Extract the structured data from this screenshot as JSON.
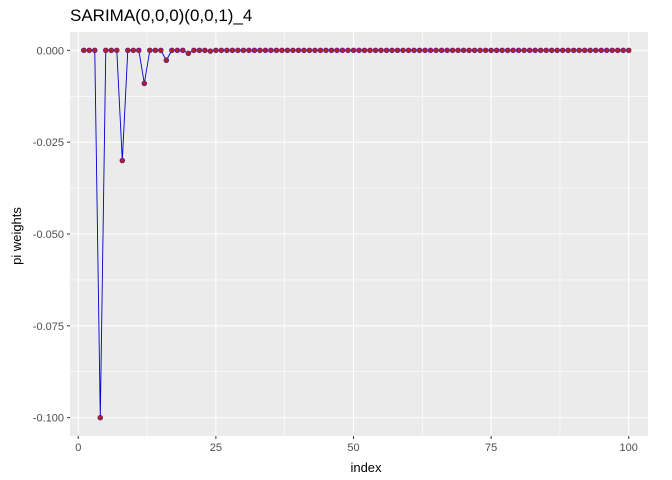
{
  "chart_data": {
    "type": "line",
    "title": "SARIMA(0,0,0)(0,0,1)_4",
    "xlabel": "index",
    "ylabel": "pi weights",
    "xlim": [
      -1.5,
      103.5
    ],
    "ylim": [
      -0.105,
      0.005
    ],
    "x_ticks": [
      0,
      25,
      50,
      75,
      100
    ],
    "x_tick_labels": [
      "0",
      "25",
      "50",
      "75",
      "100"
    ],
    "y_ticks": [
      0.0,
      -0.025,
      -0.05,
      -0.075,
      -0.1
    ],
    "y_tick_labels": [
      "0.000",
      "-0.025",
      "-0.050",
      "-0.075",
      "-0.100"
    ],
    "grid": true,
    "legend": "none",
    "colors": {
      "panel_background": "#ebebeb",
      "grid_line": "#ffffff",
      "line": "#0000cd",
      "point_fill": "#b22222",
      "point_stroke": "#551a8b"
    },
    "series": [
      {
        "x": [
          1,
          2,
          3,
          4,
          5,
          6,
          7,
          8,
          9,
          10,
          11,
          12,
          13,
          14,
          15,
          16,
          17,
          18,
          19,
          20,
          21,
          22,
          23,
          24,
          25,
          26,
          27,
          28,
          29,
          30,
          31,
          32,
          33,
          34,
          35,
          36,
          37,
          38,
          39,
          40,
          41,
          42,
          43,
          44,
          45,
          46,
          47,
          48,
          49,
          50,
          51,
          52,
          53,
          54,
          55,
          56,
          57,
          58,
          59,
          60,
          61,
          62,
          63,
          64,
          65,
          66,
          67,
          68,
          69,
          70,
          71,
          72,
          73,
          74,
          75,
          76,
          77,
          78,
          79,
          80,
          81,
          82,
          83,
          84,
          85,
          86,
          87,
          88,
          89,
          90,
          91,
          92,
          93,
          94,
          95,
          96,
          97,
          98,
          99,
          100
        ],
        "values": [
          0,
          0,
          0,
          -0.1,
          0,
          0,
          0,
          -0.03,
          0,
          0,
          0,
          -0.009,
          0,
          0,
          0,
          -0.0027,
          0,
          0,
          0,
          -0.0008,
          0,
          0,
          0,
          -0.0002,
          0,
          0,
          0,
          0,
          0,
          0,
          0,
          0,
          0,
          0,
          0,
          0,
          0,
          0,
          0,
          0,
          0,
          0,
          0,
          0,
          0,
          0,
          0,
          0,
          0,
          0,
          0,
          0,
          0,
          0,
          0,
          0,
          0,
          0,
          0,
          0,
          0,
          0,
          0,
          0,
          0,
          0,
          0,
          0,
          0,
          0,
          0,
          0,
          0,
          0,
          0,
          0,
          0,
          0,
          0,
          0,
          0,
          0,
          0,
          0,
          0,
          0,
          0,
          0,
          0,
          0,
          0,
          0,
          0,
          0,
          0,
          0,
          0,
          0,
          0,
          0
        ]
      }
    ]
  }
}
